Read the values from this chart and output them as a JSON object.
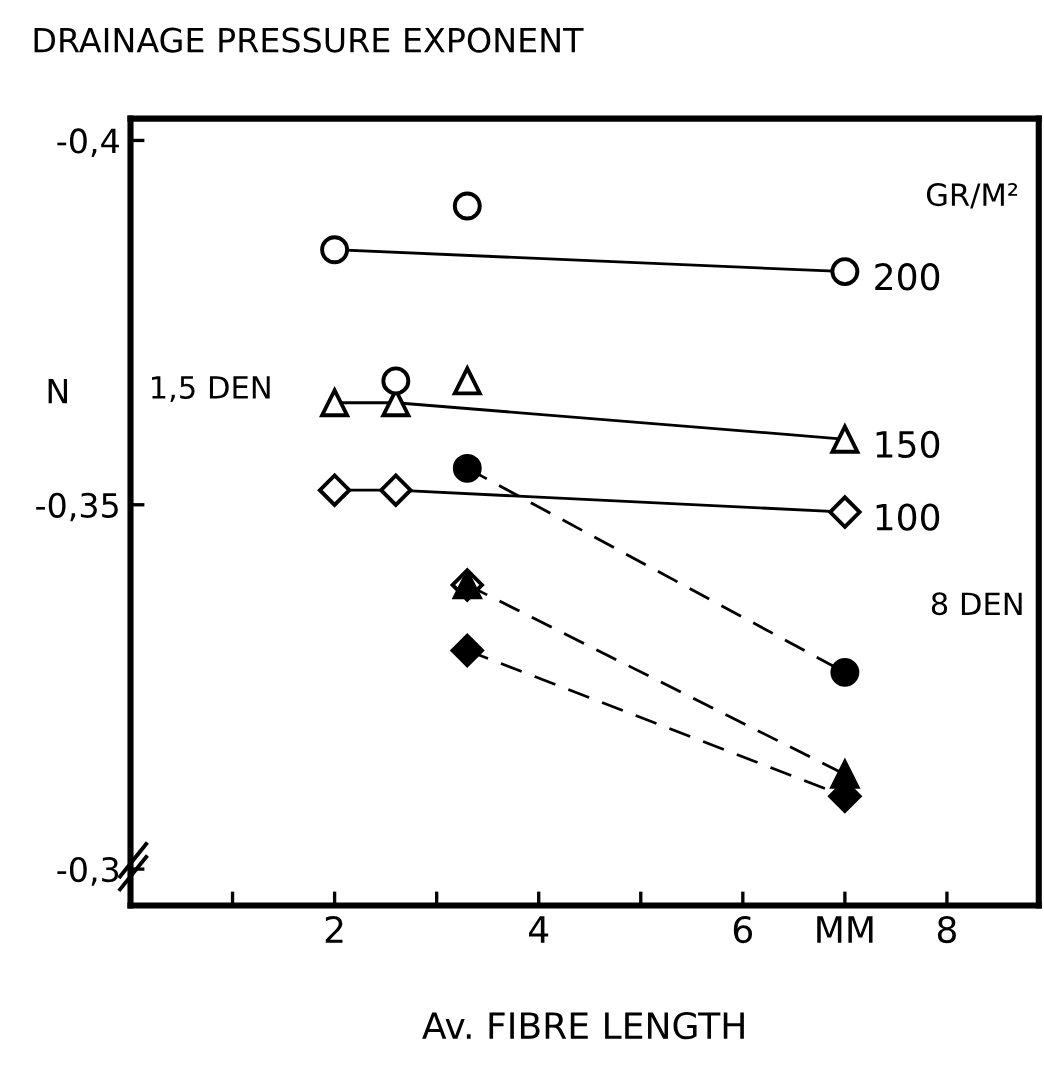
{
  "chart_data": {
    "type": "line",
    "title": "DRAINAGE PRESSURE EXPONENT",
    "xlabel": "Av. FIBRE LENGTH",
    "ylabel": "N",
    "xlim": [
      0,
      8.9
    ],
    "xticks": [
      {
        "value": 1,
        "label": null
      },
      2,
      {
        "value": 3,
        "label": null
      },
      4,
      {
        "value": 5,
        "label": null
      },
      6,
      {
        "value": 7,
        "label": "MM"
      },
      8
    ],
    "ylim": [
      -0.295,
      -0.403
    ],
    "yticks": [
      {
        "value": -0.4,
        "label": "-0,4"
      },
      {
        "value": -0.35,
        "label": "-0,35"
      },
      {
        "value": -0.3,
        "label": "-0,3"
      }
    ],
    "grid": false,
    "legend": false,
    "annotations": [
      "GR/M²",
      "1,5 DEN",
      "8 DEN"
    ],
    "series": [
      {
        "name": "200",
        "type": "line",
        "color": "#000000",
        "marker": "circle",
        "line_style": "solid",
        "x": [
          2,
          7
        ],
        "values": [
          -0.385,
          -0.382
        ]
      },
      {
        "name": "150",
        "type": "line",
        "color": "#000000",
        "marker": "triangle",
        "line_style": "solid",
        "x": [
          2,
          2.6,
          7
        ],
        "values": [
          -0.364,
          -0.364,
          -0.359
        ]
      },
      {
        "name": "100",
        "type": "line",
        "color": "#000000",
        "marker": "diamond",
        "line_style": "solid",
        "x": [
          2,
          2.6,
          7
        ],
        "values": [
          -0.352,
          -0.352,
          -0.349
        ]
      },
      {
        "type": "scatter",
        "color": "#000000",
        "marker": "circle",
        "x": [
          3.3,
          2.6
        ],
        "values": [
          -0.391,
          -0.367
        ]
      },
      {
        "type": "scatter",
        "color": "#000000",
        "marker": "triangle",
        "x": [
          3.3
        ],
        "values": [
          -0.367
        ]
      },
      {
        "type": "scatter",
        "color": "#000000",
        "marker": "diamond",
        "x": [
          3.3
        ],
        "values": [
          -0.339
        ]
      },
      {
        "type": "line",
        "color": "#000000",
        "marker": "circle",
        "line_style": "dashed",
        "x": [
          3.3,
          7
        ],
        "values": [
          -0.355,
          -0.327
        ]
      },
      {
        "type": "line",
        "color": "#000000",
        "marker": "triangle",
        "line_style": "dashed",
        "x": [
          3.3,
          7
        ],
        "values": [
          -0.339,
          -0.313
        ]
      },
      {
        "type": "line",
        "color": "#000000",
        "marker": "diamond",
        "line_style": "dashed",
        "x": [
          3.3,
          7
        ],
        "values": [
          -0.33,
          -0.31
        ]
      }
    ]
  }
}
